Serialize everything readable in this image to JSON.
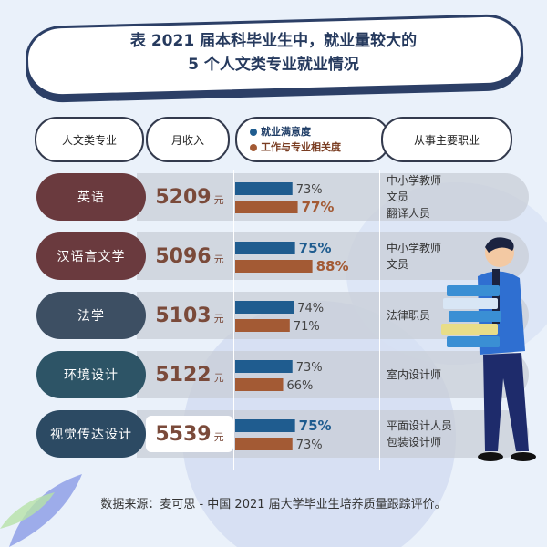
{
  "title_line1": "表 2021 届本科毕业生中，就业量较大的",
  "title_line2": "5 个人文类专业就业情况",
  "headers": {
    "major": "人文类专业",
    "income": "月收入",
    "occupation": "从事主要职业"
  },
  "colors": {
    "satisfaction": "#1f5c8f",
    "relevance": "#a35a34"
  },
  "chart_data": {
    "type": "bar",
    "categories": [
      "英语",
      "汉语言文学",
      "法学",
      "环境设计",
      "视觉传达设计"
    ],
    "income_unit": "元",
    "monthly_income": [
      5209,
      5096,
      5103,
      5122,
      5539
    ],
    "series": [
      {
        "name": "就业满意度",
        "values": [
          73,
          75,
          74,
          73,
          75
        ],
        "labels": [
          "73%",
          "75%",
          "74%",
          "73%",
          "75%"
        ],
        "highlight": [
          false,
          true,
          false,
          false,
          true
        ]
      },
      {
        "name": "工作与专业相关度",
        "values": [
          77,
          88,
          71,
          66,
          73
        ],
        "labels": [
          "77%",
          "88%",
          "71%",
          "66%",
          "73%"
        ],
        "highlight": [
          true,
          true,
          false,
          false,
          false
        ]
      }
    ],
    "occupations": [
      [
        "中小学教师",
        "文员",
        "翻译人员"
      ],
      [
        "中小学教师",
        "文员"
      ],
      [
        "法律职员"
      ],
      [
        "室内设计师"
      ],
      [
        "平面设计人员",
        "包装设计师"
      ]
    ],
    "xlim": [
      0,
      100
    ]
  },
  "source": "数据来源：麦可思 - 中国 2021 届大学毕业生培养质量跟踪评价。"
}
